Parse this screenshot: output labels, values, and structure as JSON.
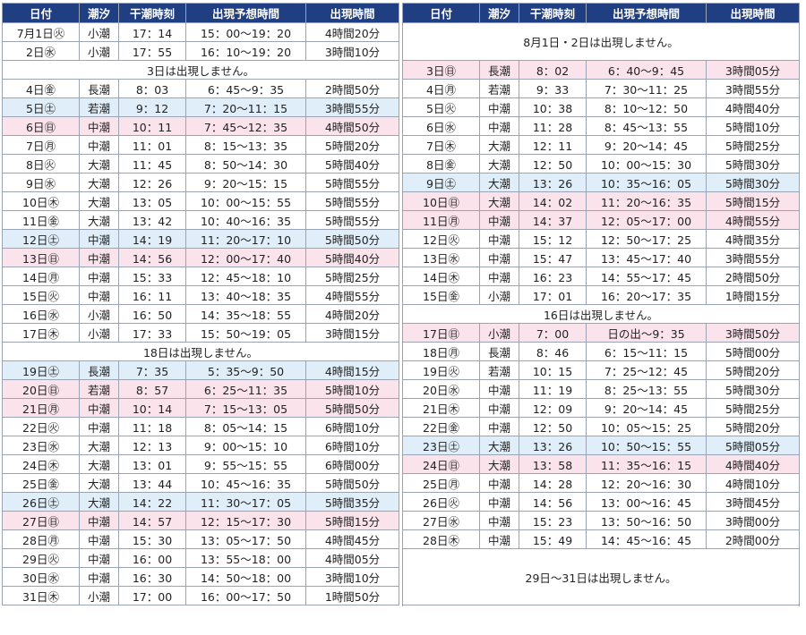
{
  "headers": [
    "日付",
    "潮汐",
    "干潮時刻",
    "出現予想時間",
    "出現時間"
  ],
  "july": {
    "rows": [
      {
        "date": "7月1日㊋",
        "tide": "小潮",
        "low": "17：14",
        "window": "15：00～19：20",
        "dur": "4時間20分",
        "day": "weekday"
      },
      {
        "date": "2日㊌",
        "tide": "小潮",
        "low": "17：55",
        "window": "16：10～19：20",
        "dur": "3時間10分",
        "day": "weekday"
      },
      {
        "note": "3日は出現しません。"
      },
      {
        "date": "4日㊎",
        "tide": "長潮",
        "low": "8：03",
        "window": "6：45～9：35",
        "dur": "2時間50分",
        "day": "weekday"
      },
      {
        "date": "5日㊏",
        "tide": "若潮",
        "low": "9：12",
        "window": "7：20～11：15",
        "dur": "3時間55分",
        "day": "sat"
      },
      {
        "date": "6日㊐",
        "tide": "中潮",
        "low": "10：11",
        "window": "7：45～12：35",
        "dur": "4時間50分",
        "day": "sun"
      },
      {
        "date": "7日㊊",
        "tide": "中潮",
        "low": "11：01",
        "window": "8：15～13：35",
        "dur": "5時間20分",
        "day": "weekday"
      },
      {
        "date": "8日㊋",
        "tide": "大潮",
        "low": "11：45",
        "window": "8：50～14：30",
        "dur": "5時間40分",
        "day": "weekday"
      },
      {
        "date": "9日㊌",
        "tide": "大潮",
        "low": "12：26",
        "window": "9：20～15：15",
        "dur": "5時間55分",
        "day": "weekday"
      },
      {
        "date": "10日㊍",
        "tide": "大潮",
        "low": "13：05",
        "window": "10：00～15：55",
        "dur": "5時間55分",
        "day": "weekday"
      },
      {
        "date": "11日㊎",
        "tide": "大潮",
        "low": "13：42",
        "window": "10：40～16：35",
        "dur": "5時間55分",
        "day": "weekday"
      },
      {
        "date": "12日㊏",
        "tide": "中潮",
        "low": "14：19",
        "window": "11：20～17：10",
        "dur": "5時間50分",
        "day": "sat"
      },
      {
        "date": "13日㊐",
        "tide": "中潮",
        "low": "14：56",
        "window": "12：00～17：40",
        "dur": "5時間40分",
        "day": "sun"
      },
      {
        "date": "14日㊊",
        "tide": "中潮",
        "low": "15：33",
        "window": "12：45～18：10",
        "dur": "5時間25分",
        "day": "weekday"
      },
      {
        "date": "15日㊋",
        "tide": "中潮",
        "low": "16：11",
        "window": "13：40～18：35",
        "dur": "4時間55分",
        "day": "weekday"
      },
      {
        "date": "16日㊌",
        "tide": "小潮",
        "low": "16：50",
        "window": "14：35～18：55",
        "dur": "4時間20分",
        "day": "weekday"
      },
      {
        "date": "17日㊍",
        "tide": "小潮",
        "low": "17：33",
        "window": "15：50～19：05",
        "dur": "3時間15分",
        "day": "weekday"
      },
      {
        "note": "18日は出現しません。"
      },
      {
        "date": "19日㊏",
        "tide": "長潮",
        "low": "7：35",
        "window": "5：35～9：50",
        "dur": "4時間15分",
        "day": "sat"
      },
      {
        "date": "20日㊐",
        "tide": "若潮",
        "low": "8：57",
        "window": "6：25～11：35",
        "dur": "5時間10分",
        "day": "sun"
      },
      {
        "date": "21日㊊",
        "tide": "中潮",
        "low": "10：14",
        "window": "7：15～13：05",
        "dur": "5時間50分",
        "day": "sun"
      },
      {
        "date": "22日㊋",
        "tide": "中潮",
        "low": "11：18",
        "window": "8：05～14：15",
        "dur": "6時間10分",
        "day": "weekday"
      },
      {
        "date": "23日㊌",
        "tide": "大潮",
        "low": "12：13",
        "window": "9：00～15：10",
        "dur": "6時間10分",
        "day": "weekday"
      },
      {
        "date": "24日㊍",
        "tide": "大潮",
        "low": "13：01",
        "window": "9：55～15：55",
        "dur": "6時間00分",
        "day": "weekday"
      },
      {
        "date": "25日㊎",
        "tide": "大潮",
        "low": "13：44",
        "window": "10：45～16：35",
        "dur": "5時間50分",
        "day": "weekday"
      },
      {
        "date": "26日㊏",
        "tide": "大潮",
        "low": "14：22",
        "window": "11：30～17：05",
        "dur": "5時間35分",
        "day": "sat"
      },
      {
        "date": "27日㊐",
        "tide": "中潮",
        "low": "14：57",
        "window": "12：15～17：30",
        "dur": "5時間15分",
        "day": "sun"
      },
      {
        "date": "28日㊊",
        "tide": "中潮",
        "low": "15：30",
        "window": "13：05～17：50",
        "dur": "4時間45分",
        "day": "weekday"
      },
      {
        "date": "29日㊋",
        "tide": "中潮",
        "low": "16：00",
        "window": "13：55～18：00",
        "dur": "4時間05分",
        "day": "weekday"
      },
      {
        "date": "30日㊌",
        "tide": "中潮",
        "low": "16：30",
        "window": "14：50～18：00",
        "dur": "3時間10分",
        "day": "weekday"
      },
      {
        "date": "31日㊍",
        "tide": "小潮",
        "low": "17：00",
        "window": "16：00～17：50",
        "dur": "1時間50分",
        "day": "weekday"
      }
    ]
  },
  "august": {
    "rows": [
      {
        "note": "8月1日・2日は出現しません。",
        "span": 2
      },
      {
        "date": "3日㊐",
        "tide": "長潮",
        "low": "8：02",
        "window": "6：40～9：45",
        "dur": "3時間05分",
        "day": "sun"
      },
      {
        "date": "4日㊊",
        "tide": "若潮",
        "low": "9：33",
        "window": "7：30～11：25",
        "dur": "3時間55分",
        "day": "weekday"
      },
      {
        "date": "5日㊋",
        "tide": "中潮",
        "low": "10：38",
        "window": "8：10～12：50",
        "dur": "4時間40分",
        "day": "weekday"
      },
      {
        "date": "6日㊌",
        "tide": "中潮",
        "low": "11：28",
        "window": "8：45～13：55",
        "dur": "5時間10分",
        "day": "weekday"
      },
      {
        "date": "7日㊍",
        "tide": "大潮",
        "low": "12：11",
        "window": "9：20～14：45",
        "dur": "5時間25分",
        "day": "weekday"
      },
      {
        "date": "8日㊎",
        "tide": "大潮",
        "low": "12：50",
        "window": "10：00～15：30",
        "dur": "5時間30分",
        "day": "weekday"
      },
      {
        "date": "9日㊏",
        "tide": "大潮",
        "low": "13：26",
        "window": "10：35～16：05",
        "dur": "5時間30分",
        "day": "sat"
      },
      {
        "date": "10日㊐",
        "tide": "大潮",
        "low": "14：02",
        "window": "11：20～16：35",
        "dur": "5時間15分",
        "day": "sun"
      },
      {
        "date": "11日㊊",
        "tide": "中潮",
        "low": "14：37",
        "window": "12：05～17：00",
        "dur": "4時間55分",
        "day": "sun"
      },
      {
        "date": "12日㊋",
        "tide": "中潮",
        "low": "15：12",
        "window": "12：50～17：25",
        "dur": "4時間35分",
        "day": "weekday"
      },
      {
        "date": "13日㊌",
        "tide": "中潮",
        "low": "15：47",
        "window": "13：45～17：40",
        "dur": "3時間55分",
        "day": "weekday"
      },
      {
        "date": "14日㊍",
        "tide": "中潮",
        "low": "16：23",
        "window": "14：55～17：45",
        "dur": "2時間50分",
        "day": "weekday"
      },
      {
        "date": "15日㊎",
        "tide": "小潮",
        "low": "17：01",
        "window": "16：20～17：35",
        "dur": "1時間15分",
        "day": "weekday"
      },
      {
        "note": "16日は出現しません。"
      },
      {
        "date": "17日㊐",
        "tide": "小潮",
        "low": "7：00",
        "window": "日の出～9：35",
        "dur": "3時間50分",
        "day": "sun"
      },
      {
        "date": "18日㊊",
        "tide": "長潮",
        "low": "8：46",
        "window": "6：15～11：15",
        "dur": "5時間00分",
        "day": "weekday"
      },
      {
        "date": "19日㊋",
        "tide": "若潮",
        "low": "10：15",
        "window": "7：25～12：45",
        "dur": "5時間20分",
        "day": "weekday"
      },
      {
        "date": "20日㊌",
        "tide": "中潮",
        "low": "11：19",
        "window": "8：25～13：55",
        "dur": "5時間30分",
        "day": "weekday"
      },
      {
        "date": "21日㊍",
        "tide": "中潮",
        "low": "12：09",
        "window": "9：20～14：45",
        "dur": "5時間25分",
        "day": "weekday"
      },
      {
        "date": "22日㊎",
        "tide": "中潮",
        "low": "12：50",
        "window": "10：05～15：25",
        "dur": "5時間20分",
        "day": "weekday"
      },
      {
        "date": "23日㊏",
        "tide": "大潮",
        "low": "13：26",
        "window": "10：50～15：55",
        "dur": "5時間05分",
        "day": "sat"
      },
      {
        "date": "24日㊐",
        "tide": "大潮",
        "low": "13：58",
        "window": "11：35～16：15",
        "dur": "4時間40分",
        "day": "sun"
      },
      {
        "date": "25日㊊",
        "tide": "中潮",
        "low": "14：28",
        "window": "12：20～16：30",
        "dur": "4時間10分",
        "day": "weekday"
      },
      {
        "date": "26日㊋",
        "tide": "中潮",
        "low": "14：56",
        "window": "13：00～16：45",
        "dur": "3時間45分",
        "day": "weekday"
      },
      {
        "date": "27日㊌",
        "tide": "中潮",
        "low": "15：23",
        "window": "13：50～16：50",
        "dur": "3時間00分",
        "day": "weekday"
      },
      {
        "date": "28日㊍",
        "tide": "中潮",
        "low": "15：49",
        "window": "14：45～16：45",
        "dur": "2時間00分",
        "day": "weekday"
      },
      {
        "note": "29日～31日は出現しません。",
        "span": 3
      }
    ]
  },
  "colors": {
    "header": "#1f3f82",
    "saturday": "#dfeef9",
    "sunday_holiday": "#fbe3ec",
    "border": "#9aa4b4"
  }
}
